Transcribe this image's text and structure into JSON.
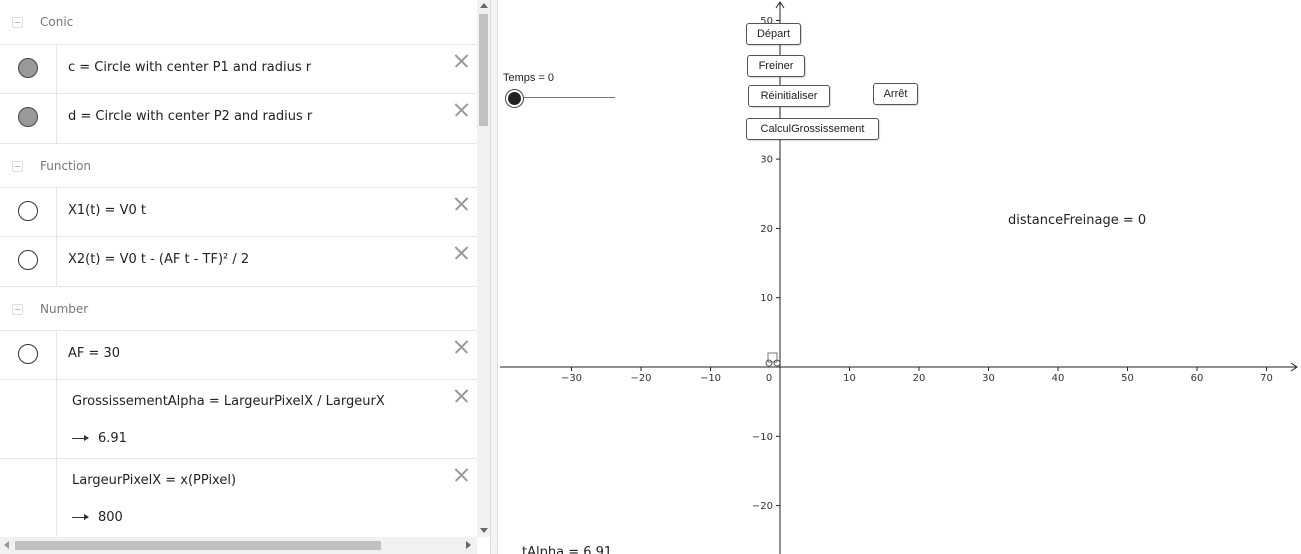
{
  "algebra": {
    "groups": [
      {
        "name": "Conic"
      },
      {
        "name": "Function"
      },
      {
        "name": "Number"
      }
    ],
    "items": [
      {
        "expr": "c = Circle with center P1 and radius r",
        "marker": "filled"
      },
      {
        "expr": "d = Circle with center P2 and radius r",
        "marker": "filled"
      },
      {
        "expr": "X1(t) = V0 t",
        "marker": "empty"
      },
      {
        "expr": "X2(t) = V0 t - (AF t - TF)² / 2",
        "marker": "empty"
      },
      {
        "expr": "AF = 30",
        "marker": "empty"
      },
      {
        "expr": "GrossissementAlpha = LargeurPixelX / LargeurX",
        "result": "6.91",
        "marker": "none"
      },
      {
        "expr": "LargeurPixelX = x(PPixel)",
        "result": "800",
        "marker": "none"
      }
    ]
  },
  "graphics": {
    "buttons": {
      "depart": "Départ",
      "freiner": "Freiner",
      "reinitialiser": "Réinitialiser",
      "arret": "Arrêt",
      "calcul": "CalculGrossissement"
    },
    "slider_label": "Temps = 0",
    "distance_text": "distanceFreinage  =  0",
    "bottom_text": "…tAlpha = 6.91",
    "x_ticks": [
      "−30",
      "−20",
      "−10",
      "0",
      "10",
      "20",
      "30",
      "40",
      "50",
      "60",
      "70"
    ],
    "y_ticks": [
      "50",
      "30",
      "20",
      "10",
      "−10",
      "−20"
    ]
  }
}
